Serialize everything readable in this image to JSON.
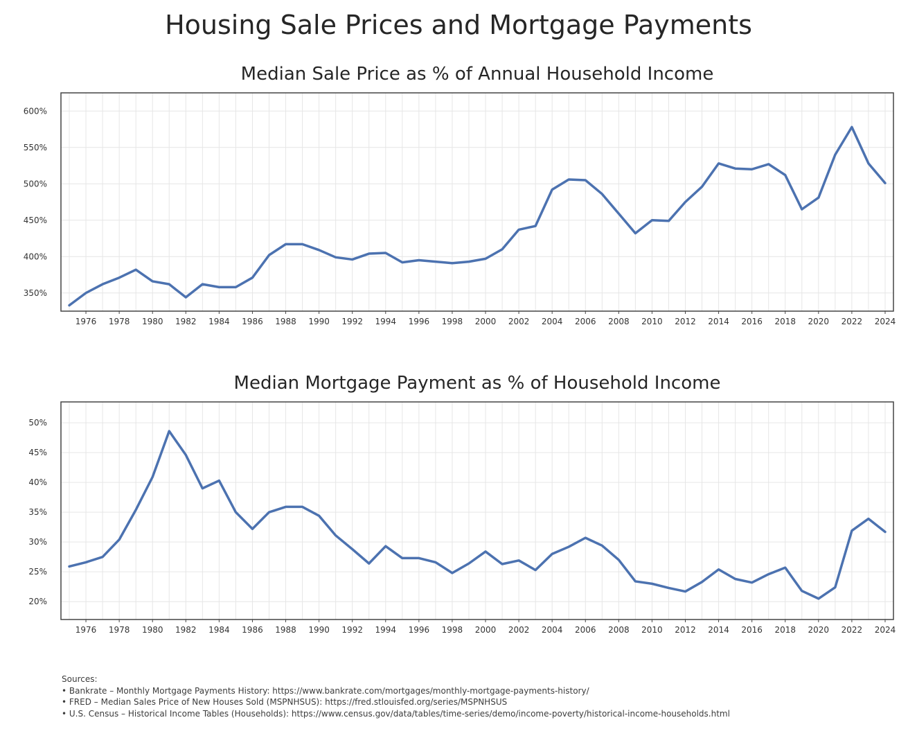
{
  "figure_title": "Housing Sale Prices and Mortgage Payments",
  "chart_data": [
    {
      "type": "line",
      "title": "Median Sale Price as % of Annual Household Income",
      "xlabel": "",
      "ylabel": "",
      "ylim": [
        325,
        625
      ],
      "xlim": [
        1974.5,
        2024.5
      ],
      "y_ticks": [
        350,
        400,
        450,
        500,
        550,
        600
      ],
      "y_tick_labels": [
        "350%",
        "400%",
        "450%",
        "500%",
        "550%",
        "600%"
      ],
      "x_ticks": [
        1976,
        1978,
        1980,
        1982,
        1984,
        1986,
        1988,
        1990,
        1992,
        1994,
        1996,
        1998,
        2000,
        2002,
        2004,
        2006,
        2008,
        2010,
        2012,
        2014,
        2016,
        2018,
        2020,
        2022,
        2024
      ],
      "grid": true,
      "color": "#4c72b0",
      "x": [
        1975,
        1976,
        1977,
        1978,
        1979,
        1980,
        1981,
        1982,
        1983,
        1984,
        1985,
        1986,
        1987,
        1988,
        1989,
        1990,
        1991,
        1992,
        1993,
        1994,
        1995,
        1996,
        1997,
        1998,
        1999,
        2000,
        2001,
        2002,
        2003,
        2004,
        2005,
        2006,
        2007,
        2008,
        2009,
        2010,
        2011,
        2012,
        2013,
        2014,
        2015,
        2016,
        2017,
        2018,
        2019,
        2020,
        2021,
        2022,
        2023,
        2024
      ],
      "values": [
        333,
        350,
        362,
        371,
        382,
        366,
        362,
        344,
        362,
        358,
        358,
        371,
        402,
        417,
        417,
        409,
        399,
        396,
        404,
        405,
        392,
        395,
        393,
        391,
        393,
        397,
        410,
        437,
        442,
        492,
        506,
        505,
        486,
        459,
        432,
        450,
        449,
        475,
        496,
        528,
        521,
        520,
        527,
        512,
        465,
        481,
        540,
        578,
        528,
        501
      ]
    },
    {
      "type": "line",
      "title": "Median Mortgage Payment as % of Household Income",
      "xlabel": "",
      "ylabel": "",
      "ylim": [
        17,
        53.5
      ],
      "xlim": [
        1974.5,
        2024.5
      ],
      "y_ticks": [
        20,
        25,
        30,
        35,
        40,
        45,
        50
      ],
      "y_tick_labels": [
        "20%",
        "25%",
        "30%",
        "35%",
        "40%",
        "45%",
        "50%"
      ],
      "x_ticks": [
        1976,
        1978,
        1980,
        1982,
        1984,
        1986,
        1988,
        1990,
        1992,
        1994,
        1996,
        1998,
        2000,
        2002,
        2004,
        2006,
        2008,
        2010,
        2012,
        2014,
        2016,
        2018,
        2020,
        2022,
        2024
      ],
      "grid": true,
      "color": "#4c72b0",
      "x": [
        1975,
        1976,
        1977,
        1978,
        1979,
        1980,
        1981,
        1982,
        1983,
        1984,
        1985,
        1986,
        1987,
        1988,
        1989,
        1990,
        1991,
        1992,
        1993,
        1994,
        1995,
        1996,
        1997,
        1998,
        1999,
        2000,
        2001,
        2002,
        2003,
        2004,
        2005,
        2006,
        2007,
        2008,
        2009,
        2010,
        2011,
        2012,
        2013,
        2014,
        2015,
        2016,
        2017,
        2018,
        2019,
        2020,
        2021,
        2022,
        2023,
        2024
      ],
      "values": [
        25.9,
        26.6,
        27.5,
        30.4,
        35.4,
        40.9,
        48.6,
        44.6,
        39.0,
        40.3,
        35.0,
        32.2,
        35.0,
        35.9,
        35.9,
        34.4,
        31.1,
        28.8,
        26.4,
        29.3,
        27.3,
        27.3,
        26.6,
        24.8,
        26.4,
        28.4,
        26.3,
        26.9,
        25.3,
        28.0,
        29.2,
        30.7,
        29.4,
        27.0,
        23.4,
        23.0,
        22.3,
        21.7,
        23.3,
        25.4,
        23.8,
        23.2,
        24.6,
        25.7,
        21.8,
        20.5,
        22.4,
        31.9,
        33.9,
        31.7
      ]
    }
  ],
  "sources": {
    "heading": "Sources:",
    "items": [
      "• Bankrate – Monthly Mortgage Payments History: https://www.bankrate.com/mortgages/monthly-mortgage-payments-history/",
      "• FRED – Median Sales Price of New Houses Sold (MSPNHSUS): https://fred.stlouisfed.org/series/MSPNHSUS",
      "• U.S. Census – Historical Income Tables (Households): https://www.census.gov/data/tables/time-series/demo/income-poverty/historical-income-households.html"
    ]
  }
}
